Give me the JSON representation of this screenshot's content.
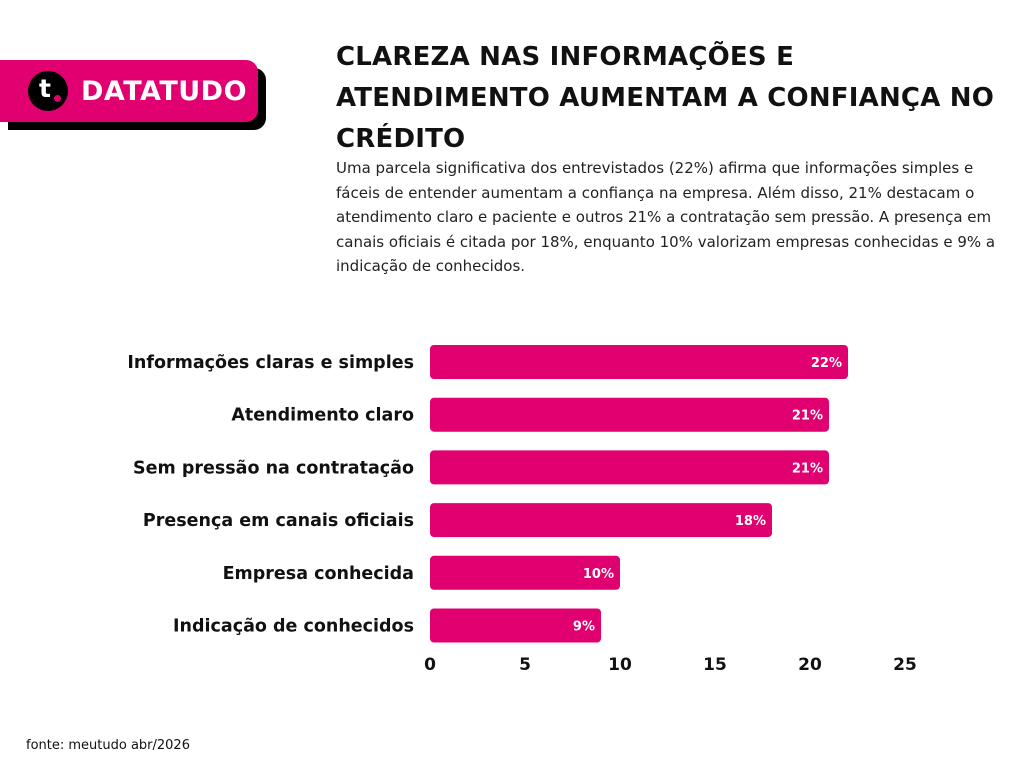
{
  "brand": {
    "logo_letter": "t",
    "name": "DATATUDO",
    "color": "#E0006F"
  },
  "title": "CLAREZA NAS INFORMAÇÕES E ATENDIMENTO AUMENTAM A CONFIANÇA NO CRÉDITO",
  "subtitle": "Uma parcela significativa dos entrevistados (22%) afirma que informações simples e fáceis de entender aumentam a confiança na empresa. Além disso, 21% destacam o atendimento claro e paciente e outros 21% a contratação sem pressão. A presença em canais oficiais é citada por 18%, enquanto 10% valorizam empresas conhecidas e 9% a indicação de conhecidos.",
  "source": "fonte: meutudo abr/2026",
  "chart_data": {
    "type": "bar",
    "orientation": "horizontal",
    "categories": [
      "Informações claras e simples",
      "Atendimento claro",
      "Sem pressão na contratação",
      "Presença em canais oficiais",
      "Empresa conhecida",
      "Indicação de conhecidos"
    ],
    "values": [
      22,
      21,
      21,
      18,
      10,
      9
    ],
    "value_labels": [
      "22%",
      "21%",
      "21%",
      "18%",
      "10%",
      "9%"
    ],
    "xlim": [
      0,
      25
    ],
    "xticks": [
      0,
      5,
      10,
      15,
      20,
      25
    ],
    "grid": false,
    "legend": "none",
    "bar_color": "#E0006F",
    "value_label_color": "#FFFFFF"
  }
}
